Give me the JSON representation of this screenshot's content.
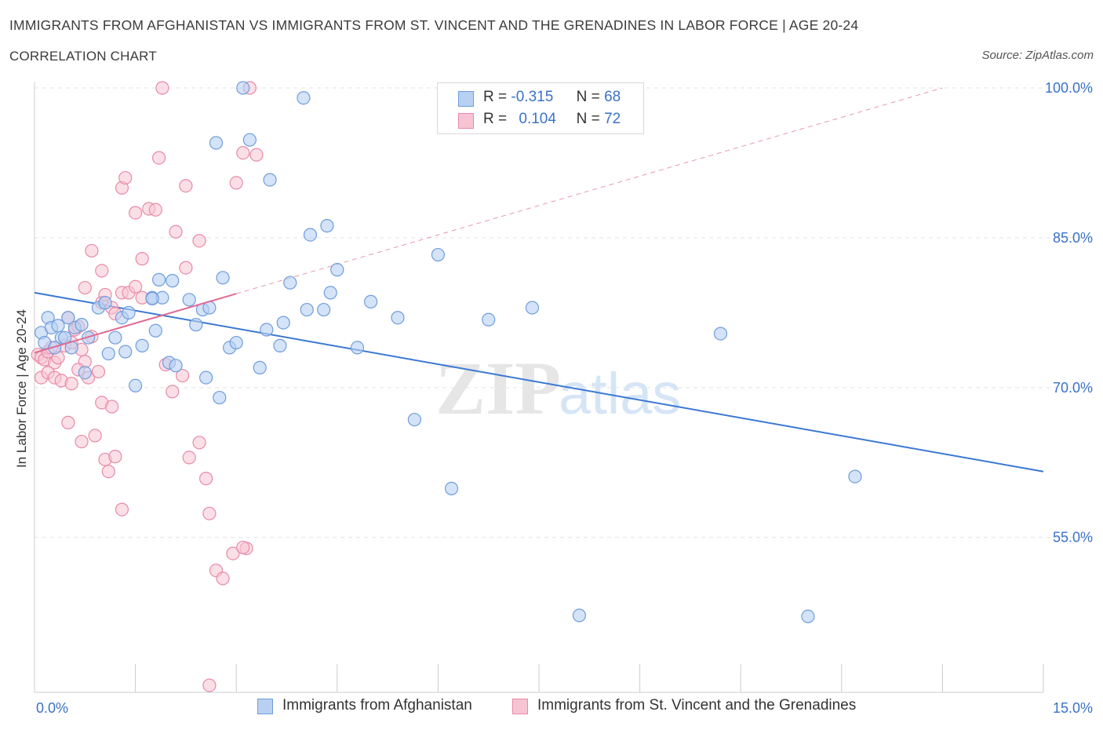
{
  "title": "IMMIGRANTS FROM AFGHANISTAN VS IMMIGRANTS FROM ST. VINCENT AND THE GRENADINES IN LABOR FORCE | AGE 20-24",
  "subtitle": "CORRELATION CHART",
  "source": "Source: ZipAtlas.com",
  "watermark": {
    "zip": "ZIP",
    "atlas": "atlas"
  },
  "legend": {
    "r_label": "R =",
    "n_label": "N =",
    "series": [
      {
        "r": "-0.315",
        "n": "68"
      },
      {
        "r": "0.104",
        "n": "72"
      }
    ]
  },
  "colors": {
    "blue_fill": "#b8d1f3",
    "blue_stroke": "#6f9ddb",
    "blue_line": "#3b78d3",
    "pink_fill": "#f7c4d4",
    "pink_stroke": "#e88aa8",
    "pink_line": "#e06a93",
    "grid": "#e3e3e3",
    "tick_label": "#3a72c9"
  },
  "chart_data": {
    "type": "scatter",
    "xlabel": "",
    "ylabel": "In Labor Force | Age 20-24",
    "xlim": [
      0,
      15
    ],
    "ylim": [
      39.5,
      100
    ],
    "x_tick_labels": [
      {
        "value": 0,
        "label": "0.0%"
      },
      {
        "value": 15,
        "label": "15.0%"
      }
    ],
    "y_tick_labels": [
      {
        "value": 55,
        "label": "55.0%"
      },
      {
        "value": 70,
        "label": "70.0%"
      },
      {
        "value": 85,
        "label": "85.0%"
      },
      {
        "value": 100,
        "label": "100.0%"
      }
    ],
    "grid": "horizontal dashed",
    "series": [
      {
        "name": "Immigrants from Afghanistan",
        "color": "blue",
        "trend": {
          "x": [
            0,
            15
          ],
          "y": [
            79.5,
            61.6
          ],
          "dashed_extension": false
        },
        "points": [
          [
            0.1,
            75.5
          ],
          [
            0.15,
            74.5
          ],
          [
            0.2,
            77
          ],
          [
            0.25,
            76
          ],
          [
            0.3,
            74
          ],
          [
            0.35,
            76.2
          ],
          [
            0.4,
            75
          ],
          [
            0.45,
            75
          ],
          [
            0.55,
            74
          ],
          [
            0.6,
            76
          ],
          [
            0.7,
            76.3
          ],
          [
            0.75,
            71.5
          ],
          [
            0.8,
            75
          ],
          [
            0.95,
            78
          ],
          [
            1.05,
            78.5
          ],
          [
            1.1,
            73.4
          ],
          [
            1.3,
            77
          ],
          [
            1.35,
            73.6
          ],
          [
            1.5,
            70.2
          ],
          [
            1.6,
            74.2
          ],
          [
            1.75,
            79
          ],
          [
            1.8,
            75.7
          ],
          [
            1.85,
            80.8
          ],
          [
            2.0,
            72.5
          ],
          [
            2.1,
            72.2
          ],
          [
            2.05,
            80.7
          ],
          [
            2.3,
            78.8
          ],
          [
            2.5,
            77.8
          ],
          [
            2.55,
            71
          ],
          [
            2.4,
            76.3
          ],
          [
            2.6,
            78
          ],
          [
            2.7,
            94.5
          ],
          [
            2.8,
            81
          ],
          [
            2.9,
            74
          ],
          [
            3.0,
            74.5
          ],
          [
            2.75,
            69
          ],
          [
            3.2,
            94.8
          ],
          [
            3.35,
            72
          ],
          [
            3.45,
            75.8
          ],
          [
            3.5,
            90.8
          ],
          [
            3.8,
            80.5
          ],
          [
            4.05,
            77.8
          ],
          [
            4.0,
            99
          ],
          [
            4.1,
            85.3
          ],
          [
            4.35,
            86.2
          ],
          [
            4.4,
            79.5
          ],
          [
            4.5,
            81.8
          ],
          [
            4.3,
            77.8
          ],
          [
            5.0,
            78.6
          ],
          [
            5.4,
            77
          ],
          [
            6.0,
            83.3
          ],
          [
            6.2,
            59.9
          ],
          [
            6.75,
            76.8
          ],
          [
            7.4,
            78
          ],
          [
            8.1,
            47.2
          ],
          [
            1.9,
            79
          ],
          [
            1.2,
            75
          ],
          [
            3.7,
            76.5
          ],
          [
            4.8,
            74
          ],
          [
            10.2,
            75.4
          ],
          [
            11.5,
            47.1
          ],
          [
            12.2,
            61.1
          ],
          [
            0.5,
            77
          ],
          [
            1.4,
            77.5
          ],
          [
            1.75,
            78.9
          ],
          [
            3.65,
            74.2
          ],
          [
            5.65,
            66.8
          ],
          [
            3.1,
            100
          ]
        ]
      },
      {
        "name": "Immigrants from St. Vincent and the Grenadines",
        "color": "pink",
        "trend": {
          "x": [
            0,
            3
          ],
          "y": [
            73.5,
            79.4
          ],
          "dashed_extension": true,
          "dashed_to": [
            13.5,
            100
          ]
        },
        "points": [
          [
            0.05,
            73.3
          ],
          [
            0.1,
            73
          ],
          [
            0.15,
            72.8
          ],
          [
            0.2,
            73.6
          ],
          [
            0.25,
            74
          ],
          [
            0.3,
            72.5
          ],
          [
            0.35,
            73
          ],
          [
            0.45,
            74.2
          ],
          [
            0.5,
            77
          ],
          [
            0.55,
            74.5
          ],
          [
            0.6,
            75.8
          ],
          [
            0.65,
            76.1
          ],
          [
            0.7,
            73.8
          ],
          [
            0.75,
            72.6
          ],
          [
            0.85,
            75.1
          ],
          [
            0.1,
            71
          ],
          [
            0.2,
            71.5
          ],
          [
            0.3,
            71
          ],
          [
            0.4,
            70.7
          ],
          [
            0.55,
            70.4
          ],
          [
            0.65,
            71.8
          ],
          [
            0.8,
            71
          ],
          [
            0.95,
            71.6
          ],
          [
            0.5,
            66.5
          ],
          [
            0.7,
            64.6
          ],
          [
            0.9,
            65.2
          ],
          [
            1.05,
            62.8
          ],
          [
            1.1,
            61.6
          ],
          [
            1.2,
            63.1
          ],
          [
            1.3,
            57.8
          ],
          [
            1.0,
            68.5
          ],
          [
            1.15,
            68.1
          ],
          [
            0.75,
            80
          ],
          [
            0.85,
            83.7
          ],
          [
            1.0,
            78.5
          ],
          [
            1.05,
            79.3
          ],
          [
            1.15,
            78
          ],
          [
            1.2,
            77.4
          ],
          [
            1.3,
            79.5
          ],
          [
            1.4,
            79.5
          ],
          [
            1.5,
            80.1
          ],
          [
            1.6,
            79
          ],
          [
            1.0,
            81.7
          ],
          [
            1.3,
            90
          ],
          [
            1.35,
            91
          ],
          [
            1.5,
            87.5
          ],
          [
            1.6,
            82.9
          ],
          [
            1.7,
            87.9
          ],
          [
            1.8,
            87.8
          ],
          [
            1.85,
            93
          ],
          [
            2.1,
            85.6
          ],
          [
            2.25,
            90.2
          ],
          [
            1.95,
            72.3
          ],
          [
            2.05,
            69.6
          ],
          [
            2.2,
            71.2
          ],
          [
            2.3,
            63
          ],
          [
            2.45,
            64.5
          ],
          [
            2.55,
            60.9
          ],
          [
            2.6,
            57.4
          ],
          [
            2.7,
            51.7
          ],
          [
            2.8,
            50.9
          ],
          [
            2.95,
            53.4
          ],
          [
            3.15,
            53.9
          ],
          [
            3.2,
            100
          ],
          [
            2.25,
            82
          ],
          [
            2.45,
            84.7
          ],
          [
            3.1,
            93.5
          ],
          [
            3.3,
            93.3
          ],
          [
            3.0,
            90.5
          ],
          [
            1.9,
            100
          ],
          [
            2.6,
            40.2
          ],
          [
            3.1,
            54
          ]
        ]
      }
    ]
  }
}
